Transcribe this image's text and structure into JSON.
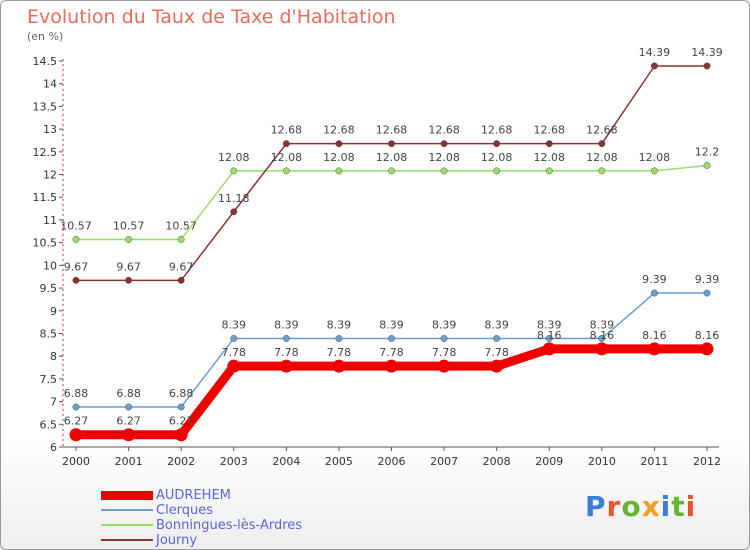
{
  "title": "Evolution du Taux de Taxe d'Habitation",
  "unit_label": "(en %)",
  "brand": {
    "text": "Proxiti",
    "colors": [
      "#3a7fd5",
      "#e8552b",
      "#66b531",
      "#f0a020",
      "#3a7fd5",
      "#66b531",
      "#e8552b"
    ]
  },
  "chart_data": {
    "type": "line",
    "title": "Evolution du Taux de Taxe d'Habitation",
    "ylabel": "(en %)",
    "xlabel": "",
    "x": [
      "2000",
      "2001",
      "2002",
      "2003",
      "2004",
      "2005",
      "2006",
      "2007",
      "2008",
      "2009",
      "2010",
      "2011",
      "2012"
    ],
    "ylim": [
      6,
      14.5
    ],
    "yticks": [
      "6",
      "6.5",
      "7",
      "7.5",
      "8",
      "8.5",
      "9",
      "9.5",
      "10",
      "10.5",
      "11",
      "11.5",
      "12",
      "12.5",
      "13",
      "13.5",
      "14",
      "14.5"
    ],
    "legend_position": "bottom",
    "series": [
      {
        "name": "AUDREHEM",
        "color": "#ee0000",
        "values": [
          6.27,
          6.27,
          6.27,
          7.78,
          7.78,
          7.78,
          7.78,
          7.78,
          7.78,
          8.16,
          8.16,
          8.16,
          8.16
        ],
        "labels": [
          "6.27",
          "6.27",
          "6.27",
          "7.78",
          "7.78",
          "7.78",
          "7.78",
          "7.78",
          "7.78",
          "8.16",
          "8.16",
          "8.16",
          "8.16"
        ]
      },
      {
        "name": "Clerques",
        "color": "#6a9fd0",
        "values": [
          6.88,
          6.88,
          6.88,
          8.39,
          8.39,
          8.39,
          8.39,
          8.39,
          8.39,
          8.39,
          8.39,
          9.39,
          9.39
        ],
        "labels": [
          "6.88",
          "6.88",
          "6.88",
          "8.39",
          "8.39",
          "8.39",
          "8.39",
          "8.39",
          "8.39",
          "8.39",
          "8.39",
          "9.39",
          "9.39"
        ]
      },
      {
        "name": "Bonningues-lès-Ardres",
        "color": "#99dd66",
        "values": [
          10.57,
          10.57,
          10.57,
          12.08,
          12.08,
          12.08,
          12.08,
          12.08,
          12.08,
          12.08,
          12.08,
          12.08,
          12.2
        ],
        "labels": [
          "10.57",
          "10.57",
          "10.57",
          "12.08",
          "12.08",
          "12.08",
          "12.08",
          "12.08",
          "12.08",
          "12.08",
          "12.08",
          "12.08",
          "12.2"
        ]
      },
      {
        "name": "Journy",
        "color": "#8b3333",
        "values": [
          9.67,
          9.67,
          9.67,
          11.18,
          12.68,
          12.68,
          12.68,
          12.68,
          12.68,
          12.68,
          12.68,
          14.39,
          14.39
        ],
        "labels": [
          "9.67",
          "9.67",
          "9.67",
          "11.18",
          "12.68",
          "12.68",
          "12.68",
          "12.68",
          "12.68",
          "12.68",
          "12.68",
          "14.39",
          "14.39"
        ]
      }
    ]
  }
}
